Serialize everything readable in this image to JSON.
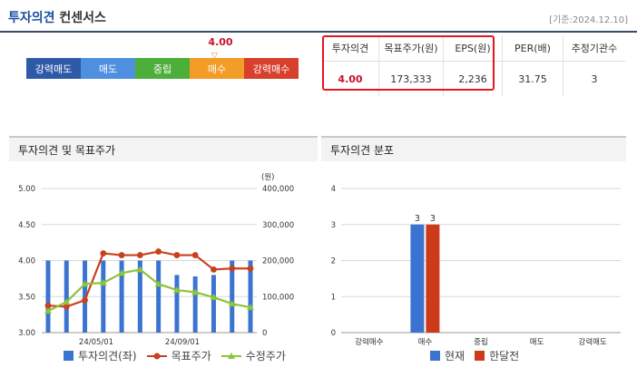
{
  "header": {
    "title_highlight": "투자의견",
    "title_rest": "컨센서스",
    "base_date": "[기준:2024.12.10]"
  },
  "rating_scale": {
    "labels": [
      "강력매도",
      "매도",
      "중립",
      "매수",
      "강력매수"
    ],
    "colors": [
      "#2e5aa8",
      "#4f8fe0",
      "#4caf3a",
      "#f39c28",
      "#d8402c"
    ],
    "current_value": "4.00"
  },
  "consensus_table": {
    "headers": [
      "투자의견",
      "목표주가(원)",
      "EPS(원)",
      "PER(배)",
      "추정기관수"
    ],
    "values": [
      "4.00",
      "173,333",
      "2,236",
      "31.75",
      "3"
    ]
  },
  "chart_data": [
    {
      "type": "bar",
      "title": "투자의견 및 목표주가",
      "y_left": {
        "ticks": [
          "5.00",
          "4.50",
          "4.00",
          "3.50",
          "3.00"
        ],
        "ylim": [
          3,
          5
        ]
      },
      "y_right": {
        "unit_label": "(원)",
        "ticks": [
          "400,000",
          "300,000",
          "200,000",
          "100,000",
          "0"
        ],
        "ylim": [
          0,
          400000
        ]
      },
      "x_ticks": [
        "24/05/01",
        "24/09/01"
      ],
      "series": [
        {
          "name": "투자의견(좌)",
          "kind": "bar",
          "color": "#3b74d0",
          "values": [
            4,
            4,
            4,
            4,
            4,
            4,
            4,
            3.8,
            3.78,
            3.8,
            4,
            4
          ]
        },
        {
          "name": "목표주가",
          "kind": "line",
          "color": "#c9401e",
          "values": [
            75000,
            72000,
            90000,
            220000,
            215000,
            215000,
            225000,
            215000,
            215000,
            175000,
            178000,
            178000
          ]
        },
        {
          "name": "수정주가",
          "kind": "line",
          "color": "#8cc43a",
          "values": [
            60000,
            85000,
            135000,
            138000,
            165000,
            175000,
            135000,
            118000,
            112000,
            98000,
            80000,
            70000
          ]
        }
      ]
    },
    {
      "type": "bar",
      "title": "투자의견 분포",
      "ylim": [
        0,
        4
      ],
      "y_ticks": [
        "4",
        "3",
        "2",
        "1",
        "0"
      ],
      "categories": [
        "강력매수",
        "매수",
        "중립",
        "매도",
        "강력매도"
      ],
      "series": [
        {
          "name": "현재",
          "color": "#3b74d0",
          "values": [
            0,
            3,
            0,
            0,
            0
          ],
          "labels": [
            "",
            "3",
            "",
            "",
            ""
          ]
        },
        {
          "name": "한달전",
          "color": "#cc3a1a",
          "values": [
            0,
            3,
            0,
            0,
            0
          ],
          "labels": [
            "",
            "3",
            "",
            "",
            ""
          ]
        }
      ]
    }
  ]
}
